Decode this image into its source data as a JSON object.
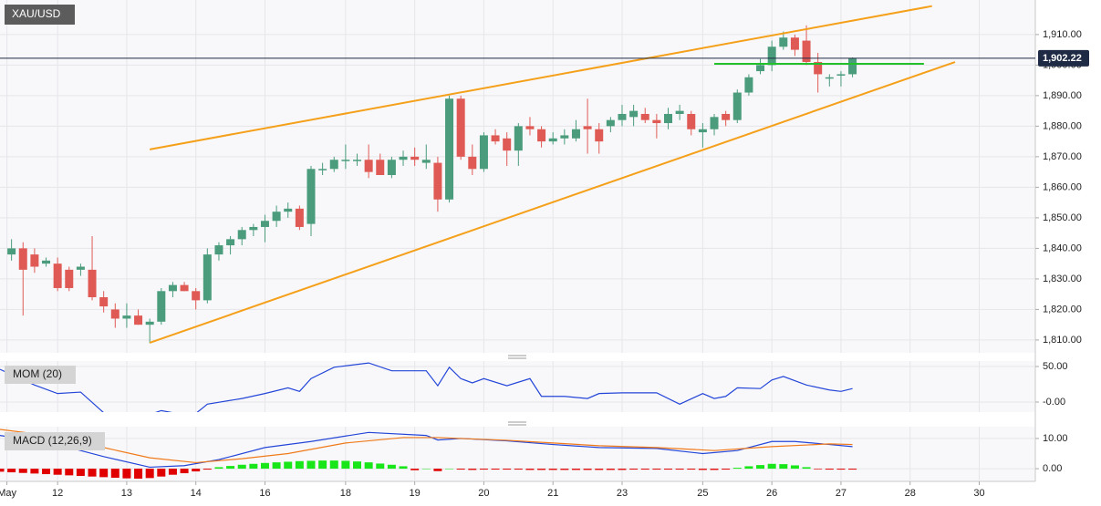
{
  "chart_data": [
    {
      "type": "candlestick",
      "title": "XAU/USD",
      "x": [
        1,
        2,
        3,
        4,
        5,
        6,
        7,
        8,
        9,
        10,
        11,
        12,
        13,
        14,
        15,
        16,
        17,
        18,
        19,
        20,
        21,
        22,
        23,
        24,
        25,
        26,
        27,
        28,
        29,
        30,
        31,
        32,
        33,
        34,
        35,
        36,
        37,
        38,
        39,
        40,
        41,
        42,
        43,
        44,
        45,
        46,
        47,
        48,
        49,
        50,
        51,
        52,
        53,
        54,
        55,
        56,
        57,
        58,
        59,
        60,
        61,
        62,
        63,
        64,
        65,
        66,
        67,
        68,
        69,
        70,
        71,
        72,
        73,
        74
      ],
      "ohlc": [
        [
          1838,
          1843,
          1836,
          1840
        ],
        [
          1840,
          1842,
          1818,
          1833
        ],
        [
          1838,
          1840,
          1832,
          1834
        ],
        [
          1835,
          1837,
          1834,
          1836
        ],
        [
          1835,
          1837,
          1826,
          1827
        ],
        [
          1833,
          1834,
          1826,
          1827
        ],
        [
          1833,
          1835,
          1831,
          1834
        ],
        [
          1833,
          1844,
          1823,
          1824
        ],
        [
          1824,
          1826,
          1819,
          1821
        ],
        [
          1820,
          1822,
          1814,
          1817
        ],
        [
          1817,
          1822,
          1814,
          1818
        ],
        [
          1818,
          1820,
          1815,
          1815
        ],
        [
          1815,
          1817,
          1809,
          1816
        ],
        [
          1816,
          1827,
          1815,
          1826
        ],
        [
          1826,
          1829,
          1824,
          1828
        ],
        [
          1828,
          1829,
          1826,
          1826
        ],
        [
          1826,
          1827,
          1820,
          1823
        ],
        [
          1823,
          1840,
          1822,
          1838
        ],
        [
          1838,
          1842,
          1836,
          1841
        ],
        [
          1841,
          1844,
          1838,
          1843
        ],
        [
          1843,
          1847,
          1841,
          1846
        ],
        [
          1846,
          1848,
          1844,
          1847
        ],
        [
          1847,
          1851,
          1842,
          1849
        ],
        [
          1849,
          1854,
          1847,
          1852
        ],
        [
          1852,
          1855,
          1850,
          1853
        ],
        [
          1853,
          1854,
          1846,
          1847
        ],
        [
          1848,
          1867,
          1844,
          1866
        ],
        [
          1866,
          1868,
          1864,
          1866
        ],
        [
          1866,
          1870,
          1865,
          1869
        ],
        [
          1869,
          1874,
          1866,
          1869
        ],
        [
          1869,
          1871,
          1867,
          1869
        ],
        [
          1869,
          1874,
          1863,
          1865
        ],
        [
          1869,
          1871,
          1864,
          1864
        ],
        [
          1864,
          1870,
          1863,
          1869
        ],
        [
          1869,
          1872,
          1867,
          1870
        ],
        [
          1870,
          1873,
          1867,
          1869
        ],
        [
          1868,
          1874,
          1866,
          1869
        ],
        [
          1868,
          1870,
          1852,
          1856
        ],
        [
          1856,
          1890,
          1855,
          1889
        ],
        [
          1889,
          1890,
          1869,
          1870
        ],
        [
          1870,
          1874,
          1864,
          1866
        ],
        [
          1866,
          1878,
          1865,
          1877
        ],
        [
          1877,
          1879,
          1874,
          1875
        ],
        [
          1876,
          1878,
          1867,
          1872
        ],
        [
          1872,
          1881,
          1867,
          1880
        ],
        [
          1880,
          1883,
          1877,
          1879
        ],
        [
          1879,
          1880,
          1873,
          1875
        ],
        [
          1875,
          1878,
          1874,
          1876
        ],
        [
          1876,
          1879,
          1874,
          1877
        ],
        [
          1876,
          1882,
          1875,
          1879
        ],
        [
          1880,
          1889,
          1871,
          1879
        ],
        [
          1879,
          1881,
          1871,
          1875
        ],
        [
          1880,
          1883,
          1878,
          1882
        ],
        [
          1882,
          1887,
          1880,
          1884
        ],
        [
          1883,
          1887,
          1880,
          1885
        ],
        [
          1884,
          1886,
          1881,
          1882
        ],
        [
          1882,
          1884,
          1876,
          1881
        ],
        [
          1881,
          1886,
          1879,
          1884
        ],
        [
          1884,
          1887,
          1882,
          1885
        ],
        [
          1884,
          1885,
          1877,
          1879
        ],
        [
          1878,
          1881,
          1873,
          1879
        ],
        [
          1879,
          1884,
          1877,
          1883
        ],
        [
          1884,
          1885,
          1880,
          1882
        ],
        [
          1882,
          1892,
          1881,
          1891
        ],
        [
          1891,
          1897,
          1890,
          1896
        ],
        [
          1898,
          1902,
          1897,
          1900
        ],
        [
          1900,
          1908,
          1898,
          1906
        ],
        [
          1906,
          1911,
          1905,
          1909
        ],
        [
          1909,
          1910,
          1903,
          1905
        ],
        [
          1908,
          1913,
          1900,
          1901
        ],
        [
          1901,
          1904,
          1891,
          1897
        ],
        [
          1896,
          1897,
          1893,
          1896
        ],
        [
          1897,
          1898,
          1893,
          1897
        ],
        [
          1897,
          1902.5,
          1896,
          1902.22
        ]
      ],
      "up_color": "#4a9c7c",
      "down_color": "#e05a55",
      "xlim": [
        0,
        89.87
      ],
      "ylim": [
        1805.8,
        1921.3
      ],
      "yticks": [
        {
          "value": 1810,
          "label": "1,810.00"
        },
        {
          "value": 1820,
          "label": "1,820.00"
        },
        {
          "value": 1830,
          "label": "1,830.00"
        },
        {
          "value": 1840,
          "label": "1,840.00"
        },
        {
          "value": 1850,
          "label": "1,850.00"
        },
        {
          "value": 1860,
          "label": "1,860.00"
        },
        {
          "value": 1870,
          "label": "1,870.00"
        },
        {
          "value": 1880,
          "label": "1,880.00"
        },
        {
          "value": 1890,
          "label": "1,890.00"
        },
        {
          "value": 1900,
          "label": "1,900.00"
        },
        {
          "value": 1910,
          "label": "1,910.00"
        }
      ],
      "grid": true,
      "last_price": {
        "value": 1902.22,
        "label": "1,902.22"
      },
      "trendlines": [
        {
          "x": [
            13,
            80.9
          ],
          "y": [
            1872.4,
            1919.3
          ],
          "color": "#f5a01a"
        },
        {
          "x": [
            13,
            82.9
          ],
          "y": [
            1809.1,
            1901
          ],
          "color": "#f5a01a"
        },
        {
          "x": [
            62,
            80.2
          ],
          "y": [
            1900.4,
            1900.4
          ],
          "color": "#22c02a"
        }
      ]
    },
    {
      "type": "line",
      "title": "MOM (20)",
      "xlim": [
        0,
        89.87
      ],
      "ylim": [
        -14.1,
        57.7
      ],
      "yticks": [
        {
          "value": 50,
          "label": "50.00"
        },
        {
          "value": 0,
          "label": "-0.00"
        }
      ],
      "grid": true,
      "series": [
        {
          "color": "#2446d8",
          "x": [
            0,
            3,
            5,
            7,
            9,
            11,
            12,
            14,
            16,
            17,
            18,
            21,
            23,
            25,
            26,
            27,
            29,
            32,
            34,
            37,
            38,
            39,
            40,
            41,
            42,
            44,
            46,
            47,
            49,
            51,
            52,
            54,
            57,
            59,
            61,
            62,
            63,
            64,
            66,
            67,
            68,
            70,
            72,
            73,
            74
          ],
          "values": [
            46,
            24,
            12,
            14,
            -15,
            -15,
            -23,
            -12,
            -18,
            -16,
            -3,
            5,
            12,
            20,
            15,
            33,
            49,
            55,
            44,
            44,
            23,
            49,
            33,
            27,
            33,
            23,
            33,
            8,
            8,
            5,
            12,
            13,
            13,
            -3,
            12,
            5,
            8,
            20,
            19,
            31,
            36,
            24,
            17,
            15,
            19
          ]
        }
      ]
    },
    {
      "type": "macd",
      "title": "MACD (12,26,9)",
      "xlim": [
        0,
        89.87
      ],
      "ylim": [
        -4.2,
        13.9
      ],
      "yticks": [
        {
          "value": 10,
          "label": "10.00"
        },
        {
          "value": 0,
          "label": "0.00"
        }
      ],
      "grid": true,
      "series": [
        {
          "color": "#2446d8",
          "x": [
            0,
            5,
            9,
            13,
            16,
            19,
            23,
            27,
            32,
            37,
            38,
            40,
            44,
            48,
            52,
            57,
            61,
            64,
            67,
            69,
            72,
            74
          ],
          "values": [
            11,
            8,
            4,
            0.5,
            1,
            3,
            7,
            9,
            12,
            11,
            9.5,
            10,
            9.2,
            8,
            7,
            6.7,
            5,
            6,
            9,
            9,
            8,
            7.3
          ]
        },
        {
          "color": "#f07a1a",
          "x": [
            0,
            5,
            9,
            13,
            17,
            21,
            25,
            30,
            35,
            38,
            44,
            48,
            52,
            57,
            62,
            67,
            72,
            74
          ],
          "values": [
            13,
            10.6,
            7,
            3.6,
            2,
            3.3,
            5,
            8.5,
            10.3,
            10.3,
            9.4,
            8.5,
            7.6,
            7,
            6,
            7.3,
            8.2,
            8
          ]
        }
      ],
      "histogram": {
        "up_color": "#19e619",
        "down_color": "#e00000",
        "x": [
          0,
          1,
          2,
          3,
          4,
          5,
          6,
          7,
          8,
          9,
          10,
          11,
          12,
          13,
          14,
          15,
          16,
          17,
          18,
          19,
          20,
          21,
          22,
          23,
          24,
          25,
          26,
          27,
          28,
          29,
          30,
          31,
          32,
          33,
          34,
          35,
          36,
          37,
          38,
          39,
          40,
          41,
          42,
          43,
          44,
          45,
          46,
          47,
          48,
          49,
          50,
          51,
          52,
          53,
          54,
          55,
          56,
          57,
          58,
          59,
          60,
          61,
          62,
          63,
          64,
          65,
          66,
          67,
          68,
          69,
          70,
          71,
          72,
          73,
          74
        ],
        "values": [
          -1,
          -1.2,
          -1.4,
          -1.6,
          -1.8,
          -2,
          -2.2,
          -2.4,
          -2.6,
          -2.8,
          -3,
          -3.2,
          -3.3,
          -3.1,
          -2.6,
          -2,
          -1.5,
          -0.9,
          -0.3,
          0.5,
          0.9,
          1.3,
          1.6,
          1.9,
          2.1,
          2.3,
          2.5,
          2.6,
          2.7,
          2.7,
          2.6,
          2.4,
          2.1,
          1.7,
          1.3,
          0.8,
          -0.5,
          0,
          -0.8,
          0,
          -0.3,
          -0.4,
          -0.3,
          -0.3,
          -0.3,
          -0.3,
          -0.4,
          -0.4,
          -0.4,
          -0.4,
          -0.4,
          -0.4,
          -0.4,
          -0.4,
          -0.4,
          -0.3,
          -0.3,
          -0.3,
          -0.3,
          -0.3,
          -0.3,
          -0.4,
          -0.4,
          -0.3,
          0.3,
          0.8,
          1.2,
          1.6,
          1.5,
          1.1,
          0.5,
          -0.2,
          -0.3,
          -0.3,
          -0.3
        ]
      },
      "xticks": [
        {
          "value": 0.6,
          "label": "May"
        },
        {
          "value": 5,
          "label": "12"
        },
        {
          "value": 11,
          "label": "13"
        },
        {
          "value": 17,
          "label": "14"
        },
        {
          "value": 23,
          "label": "16"
        },
        {
          "value": 30,
          "label": "18"
        },
        {
          "value": 36,
          "label": "19"
        },
        {
          "value": 42,
          "label": "20"
        },
        {
          "value": 48,
          "label": "21"
        },
        {
          "value": 54,
          "label": "23"
        },
        {
          "value": 61,
          "label": "25"
        },
        {
          "value": 67,
          "label": "26"
        },
        {
          "value": 73,
          "label": "27"
        },
        {
          "value": 79,
          "label": "28"
        },
        {
          "value": 85,
          "label": "30"
        }
      ]
    }
  ]
}
